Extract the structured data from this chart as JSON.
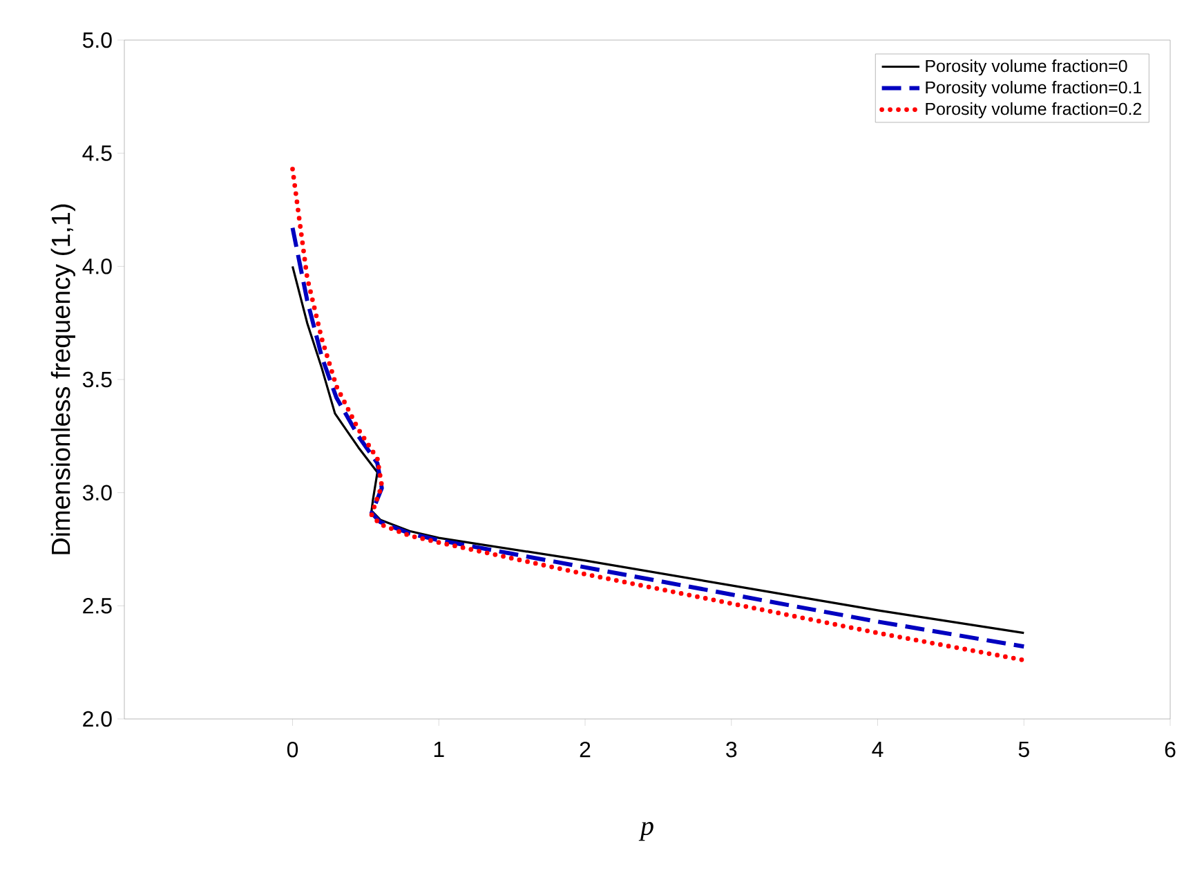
{
  "chart_data": {
    "type": "line",
    "xlabel": "p",
    "ylabel": "Dimensionless frequency (1,1)",
    "xlim": [
      -1.15,
      6
    ],
    "ylim": [
      2,
      5
    ],
    "xticks": [
      0,
      1,
      2,
      3,
      4,
      5,
      6
    ],
    "yticks": [
      {
        "value": 2,
        "label": "2.0"
      },
      {
        "value": 2.5,
        "label": "2.5"
      },
      {
        "value": 3,
        "label": "3.0"
      },
      {
        "value": 3.5,
        "label": "3.5"
      },
      {
        "value": 4,
        "label": "4.0"
      },
      {
        "value": 4.5,
        "label": "4.5"
      },
      {
        "value": 5,
        "label": "5.0"
      }
    ],
    "grid": false,
    "legend": "top right",
    "marker": "none",
    "series": [
      {
        "name": "Porosity volume fraction=0",
        "color": "#000000",
        "line_style": "solid",
        "x": [
          0,
          0.1,
          0.2,
          0.29,
          0.45,
          0.58,
          0.55,
          0.54,
          0.6,
          0.8,
          1,
          1.5,
          2,
          3,
          4,
          5
        ],
        "values": [
          4.0,
          3.75,
          3.55,
          3.35,
          3.2,
          3.09,
          2.97,
          2.92,
          2.88,
          2.83,
          2.8,
          2.75,
          2.7,
          2.59,
          2.48,
          2.38
        ]
      },
      {
        "name": "Porosity volume fraction=0.1",
        "color": "#0000c0",
        "line_style": "dashed",
        "x": [
          0,
          0.1,
          0.2,
          0.3,
          0.45,
          0.58,
          0.61,
          0.56,
          0.54,
          0.6,
          0.8,
          1,
          1.5,
          2,
          3,
          4,
          5
        ],
        "values": [
          4.17,
          3.85,
          3.6,
          3.42,
          3.25,
          3.13,
          3.02,
          2.94,
          2.91,
          2.87,
          2.82,
          2.79,
          2.73,
          2.67,
          2.55,
          2.43,
          2.32
        ]
      },
      {
        "name": "Porosity volume fraction=0.2",
        "color": "#ff0000",
        "line_style": "dotted",
        "x": [
          0,
          0.1,
          0.2,
          0.3,
          0.45,
          0.58,
          0.61,
          0.56,
          0.54,
          0.6,
          0.8,
          1,
          1.5,
          2,
          3,
          4,
          5
        ],
        "values": [
          4.43,
          3.95,
          3.68,
          3.47,
          3.28,
          3.15,
          3.03,
          2.94,
          2.9,
          2.86,
          2.81,
          2.78,
          2.71,
          2.64,
          2.51,
          2.38,
          2.26
        ]
      }
    ]
  }
}
